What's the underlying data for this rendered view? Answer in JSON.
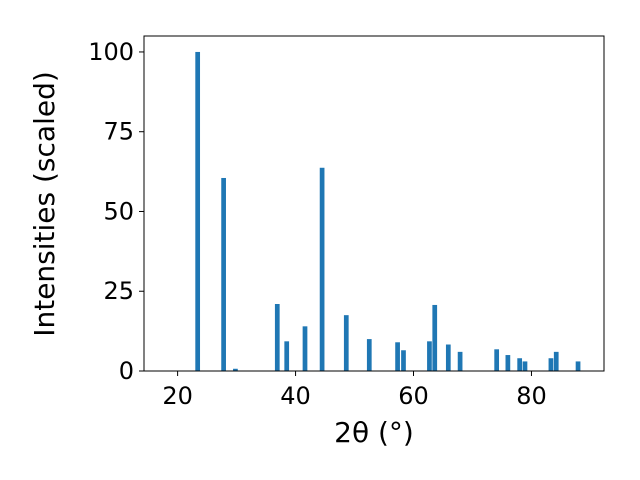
{
  "chart_data": {
    "type": "bar",
    "title": "",
    "xlabel": "2θ (°)",
    "ylabel": "Intensities (scaled)",
    "xlim": [
      14.3,
      92.3
    ],
    "ylim": [
      0,
      105
    ],
    "xticks": [
      20,
      40,
      60,
      80
    ],
    "yticks": [
      0,
      25,
      50,
      75,
      100
    ],
    "xtick_labels": [
      "20",
      "40",
      "60",
      "80"
    ],
    "ytick_labels": [
      "0",
      "25",
      "50",
      "75",
      "100"
    ],
    "grid": false,
    "legend": "none",
    "bar_color": "#1f77b4",
    "bar_width": 0.8,
    "x": [
      23.4,
      27.8,
      29.8,
      36.9,
      38.5,
      41.6,
      44.5,
      48.6,
      52.5,
      57.3,
      58.3,
      62.7,
      63.6,
      65.9,
      67.9,
      74.1,
      76.0,
      78.0,
      78.9,
      83.3,
      84.2,
      87.9
    ],
    "values": [
      100,
      60.5,
      0.7,
      21,
      9.3,
      14,
      63.7,
      17.5,
      10,
      9,
      6.5,
      9.3,
      20.7,
      8.3,
      6,
      6.8,
      5,
      4,
      3,
      4,
      6,
      3
    ]
  }
}
